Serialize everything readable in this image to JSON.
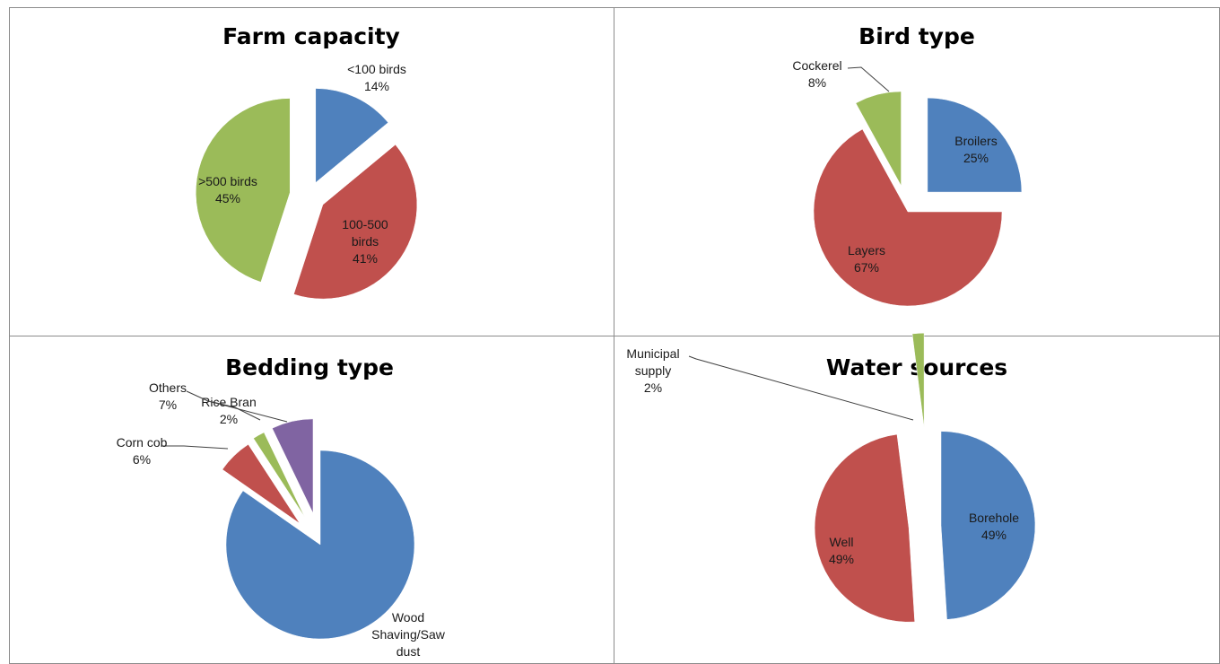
{
  "chart_data": [
    {
      "type": "pie",
      "title": "Farm capacity",
      "slices": [
        {
          "label": [
            "<100 birds"
          ],
          "percent_text": "14%",
          "value": 14,
          "color": "#4F81BD"
        },
        {
          "label": [
            "100-500",
            "birds"
          ],
          "percent_text": "41%",
          "value": 41,
          "color": "#C0504D"
        },
        {
          "label": [
            ">500 birds"
          ],
          "percent_text": "45%",
          "value": 45,
          "color": "#9BBB59"
        }
      ]
    },
    {
      "type": "pie",
      "title": "Bird type",
      "slices": [
        {
          "label": [
            "Broilers"
          ],
          "percent_text": "25%",
          "value": 25,
          "color": "#4F81BD"
        },
        {
          "label": [
            "Layers"
          ],
          "percent_text": "67%",
          "value": 67,
          "color": "#C0504D"
        },
        {
          "label": [
            "Cockerel"
          ],
          "percent_text": "8%",
          "value": 8,
          "color": "#9BBB59"
        }
      ]
    },
    {
      "type": "pie",
      "title": "Bedding type",
      "slices": [
        {
          "label": [
            "Wood",
            "Shaving/Saw",
            "dust"
          ],
          "percent_text": "",
          "value": 83,
          "color": "#4F81BD"
        },
        {
          "label": [
            "Corn cob"
          ],
          "percent_text": "6%",
          "value": 6,
          "color": "#C0504D"
        },
        {
          "label": [
            "Rice Bran"
          ],
          "percent_text": "2%",
          "value": 2,
          "color": "#9BBB59"
        },
        {
          "label": [
            "Others"
          ],
          "percent_text": "7%",
          "value": 7,
          "color": "#8064A2"
        }
      ]
    },
    {
      "type": "pie",
      "title": "Water sources",
      "slices": [
        {
          "label": [
            "Borehole"
          ],
          "percent_text": "49%",
          "value": 49,
          "color": "#4F81BD"
        },
        {
          "label": [
            "Well"
          ],
          "percent_text": "49%",
          "value": 49,
          "color": "#C0504D"
        },
        {
          "label": [
            "Municipal",
            "supply"
          ],
          "percent_text": "2%",
          "value": 2,
          "color": "#9BBB59"
        }
      ]
    }
  ]
}
